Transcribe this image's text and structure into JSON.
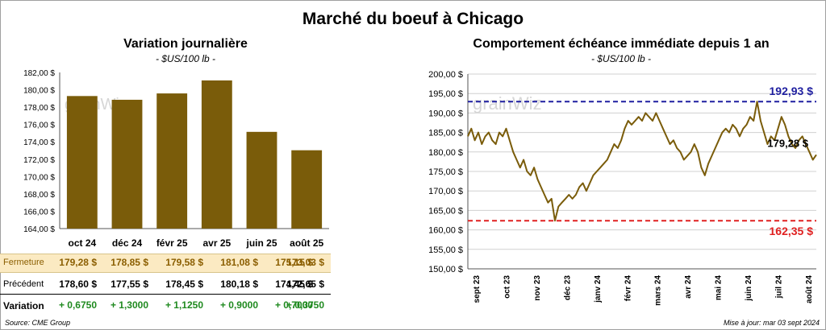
{
  "title": "Marché du boeuf à Chicago",
  "left": {
    "subtitle": "Variation  journalière",
    "units": "- $US/100 lb -"
  },
  "right": {
    "subtitle": "Comportement  échéance immédiate depuis 1 an",
    "units": "- $US/100 lb -",
    "max_label": "192,93 $",
    "min_label": "162,35 $",
    "last_label": "179,28 $"
  },
  "table": {
    "close_label": "Fermeture",
    "prev_label": "Précédent",
    "var_label": "Variation",
    "close": [
      "179,28  $",
      "178,85  $",
      "179,58  $",
      "181,08  $",
      "175,15  $",
      "173,03  $"
    ],
    "prev": [
      "178,60  $",
      "177,55  $",
      "178,45  $",
      "180,18  $",
      "174,45  $",
      "172,65  $"
    ],
    "var": [
      "+ 0,6750",
      "+ 1,3000",
      "+ 1,1250",
      "+ 0,9000",
      "+ 0,7000",
      "+ 0,3750"
    ]
  },
  "footer": {
    "source": "Source: CME Group",
    "updated": "Mise à jour: mar 03 sept 2024"
  },
  "watermark": "grainWiz",
  "colors": {
    "bar": "#7a5c0a",
    "line": "#7a5c0a",
    "max_line": "#1f1fa0",
    "min_line": "#e02020",
    "close_row_bg": "#fbeac2",
    "variation_text": "#1f8a1f"
  },
  "chart_data": [
    {
      "type": "bar",
      "categories": [
        "oct 24",
        "déc 24",
        "févr 25",
        "avr 25",
        "juin 25",
        "août 25"
      ],
      "values": [
        179.28,
        178.85,
        179.58,
        181.08,
        175.15,
        173.03
      ],
      "ylim": [
        164,
        182
      ],
      "yticks": [
        "164,00 $",
        "166,00 $",
        "168,00 $",
        "170,00 $",
        "172,00 $",
        "174,00 $",
        "176,00 $",
        "178,00 $",
        "180,00 $",
        "182,00 $"
      ],
      "grid": false
    },
    {
      "type": "line",
      "x_labels": [
        "sept 23",
        "oct 23",
        "nov 23",
        "déc 23",
        "janv 24",
        "févr 24",
        "mars 24",
        "avr 24",
        "mai 24",
        "juin 24",
        "juil 24",
        "août 24"
      ],
      "values": [
        184,
        186,
        183,
        185,
        182,
        184,
        185,
        183,
        182,
        185,
        184,
        186,
        183,
        180,
        178,
        176,
        178,
        175,
        174,
        176,
        173,
        171,
        169,
        167,
        168,
        162.35,
        166,
        167,
        168,
        169,
        168,
        169,
        171,
        172,
        170,
        172,
        174,
        175,
        176,
        177,
        178,
        180,
        182,
        181,
        183,
        186,
        188,
        187,
        188,
        189,
        188,
        190,
        189,
        188,
        190,
        188,
        186,
        184,
        182,
        183,
        181,
        180,
        178,
        179,
        180,
        182,
        180,
        176,
        174,
        177,
        179,
        181,
        183,
        185,
        186,
        185,
        187,
        186,
        184,
        186,
        187,
        189,
        188,
        192.93,
        188,
        185,
        182,
        184,
        183,
        186,
        189,
        187,
        184,
        182,
        181,
        183,
        184,
        182,
        180,
        178,
        179.28
      ],
      "ylim": [
        150,
        200
      ],
      "yticks": [
        "150,00 $",
        "155,00 $",
        "160,00 $",
        "165,00 $",
        "170,00 $",
        "175,00 $",
        "180,00 $",
        "185,00 $",
        "190,00 $",
        "195,00 $",
        "200,00 $"
      ],
      "max": 192.93,
      "min": 162.35,
      "last": 179.28,
      "grid": true
    }
  ]
}
